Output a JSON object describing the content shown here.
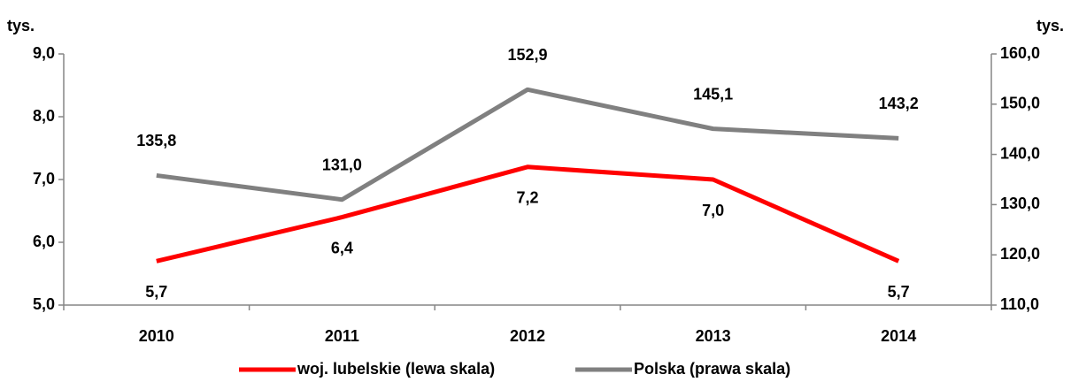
{
  "chart_data": {
    "type": "line",
    "y_label": "tys.",
    "y2_label": "tys.",
    "categories": [
      "2010",
      "2011",
      "2012",
      "2013",
      "2014"
    ],
    "series": [
      {
        "name": "woj. lubelskie (lewa skala)",
        "color": "#ff0000",
        "axis": "y",
        "values": [
          5.7,
          6.4,
          7.2,
          7.0,
          5.7
        ],
        "value_labels": [
          "5,7",
          "6,4",
          "7,2",
          "7,0",
          "5,7"
        ]
      },
      {
        "name": "Polska (prawa skala)",
        "color": "#808080",
        "axis": "y2",
        "values": [
          135.8,
          131.0,
          152.9,
          145.1,
          143.2
        ],
        "value_labels": [
          "135,8",
          "131,0",
          "152,9",
          "145,1",
          "143,2"
        ]
      }
    ],
    "ylim": [
      5,
      9
    ],
    "yticks": [
      {
        "value": 5,
        "label": "5,0"
      },
      {
        "value": 6,
        "label": "6,0"
      },
      {
        "value": 7,
        "label": "7,0"
      },
      {
        "value": 8,
        "label": "8,0"
      },
      {
        "value": 9,
        "label": "9,0"
      }
    ],
    "y2lim": [
      110,
      160
    ],
    "y2ticks": [
      {
        "value": 110,
        "label": "110,0"
      },
      {
        "value": 120,
        "label": "120,0"
      },
      {
        "value": 130,
        "label": "130,0"
      },
      {
        "value": 140,
        "label": "140,0"
      },
      {
        "value": 150,
        "label": "150,0"
      },
      {
        "value": 160,
        "label": "160,0"
      }
    ],
    "grid": false,
    "legend": "bottom"
  }
}
